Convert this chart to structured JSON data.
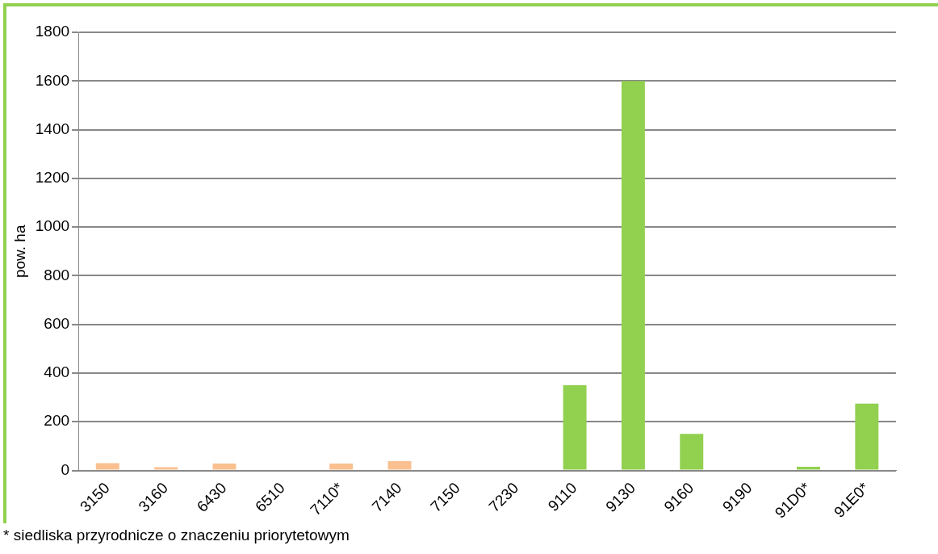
{
  "chart_data": {
    "type": "bar",
    "ylabel": "pow. ha",
    "categories": [
      "3150",
      "3160",
      "6430",
      "6510",
      "7110*",
      "7140",
      "7150",
      "7230",
      "9110",
      "9130",
      "9160",
      "9190",
      "91D0*",
      "91E0*"
    ],
    "values": [
      30,
      13,
      28,
      null,
      28,
      38,
      null,
      null,
      350,
      1600,
      150,
      null,
      15,
      275
    ],
    "colors": [
      "#fac090",
      "#fac090",
      "#fac090",
      "#fac090",
      "#fac090",
      "#fac090",
      "#fac090",
      "#fac090",
      "#92d050",
      "#92d050",
      "#92d050",
      "#92d050",
      "#92d050",
      "#92d050"
    ],
    "ylim": [
      0,
      1800
    ],
    "yticks": [
      0,
      200,
      400,
      600,
      800,
      1000,
      1200,
      1400,
      1600,
      1800
    ],
    "grid": "y",
    "annotations": [
      "* siedliska przyrodnicze o znaczeniu priorytetowym"
    ]
  }
}
